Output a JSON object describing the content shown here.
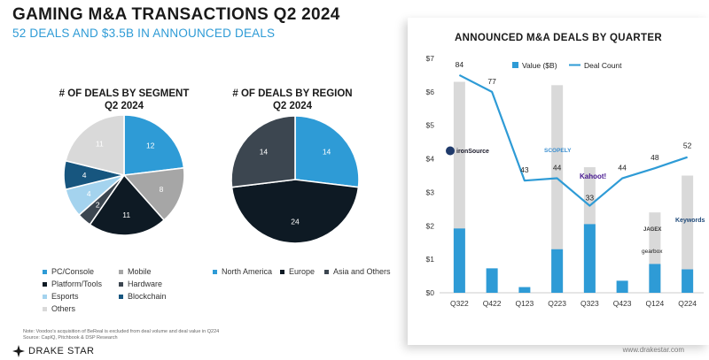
{
  "page": {
    "title": "GAMING M&A TRANSACTIONS Q2 2024",
    "subtitle": "52 DEALS AND $3.5B IN ANNOUNCED DEALS",
    "footnote_line1": "Note: Voodoo's acquisition of BeReal is excluded from deal volume and deal value in Q224",
    "footnote_line2": "Source: CapIQ, Pitchbook & DSP Research",
    "brand": "DRAKE STAR",
    "url": "www.drakestar.com"
  },
  "colors": {
    "blue": "#2e9bd6",
    "gray": "#a6a6a6",
    "black": "#0e1a24",
    "darkgray": "#3c4650",
    "lightblue": "#a4d3ee",
    "navy": "#17567f",
    "lightgray": "#d9d9d9",
    "line": "#2e9bd6"
  },
  "chart_data": [
    {
      "type": "pie",
      "title": "# OF DEALS BY SEGMENT",
      "subtitle": "Q2 2024",
      "slices": [
        {
          "label": "PC/Console",
          "value": 12,
          "color_key": "blue"
        },
        {
          "label": "Mobile",
          "value": 8,
          "color_key": "gray"
        },
        {
          "label": "Platform/Tools",
          "value": 11,
          "color_key": "black"
        },
        {
          "label": "Hardware",
          "value": 2,
          "color_key": "darkgray"
        },
        {
          "label": "Esports",
          "value": 4,
          "color_key": "lightblue"
        },
        {
          "label": "Blockchain",
          "value": 4,
          "color_key": "navy"
        },
        {
          "label": "Others",
          "value": 11,
          "color_key": "lightgray"
        }
      ]
    },
    {
      "type": "pie",
      "title": "# OF DEALS BY REGION",
      "subtitle": "Q2 2024",
      "slices": [
        {
          "label": "North America",
          "value": 14,
          "color_key": "blue"
        },
        {
          "label": "Europe",
          "value": 24,
          "color_key": "black"
        },
        {
          "label": "Asia and Others",
          "value": 14,
          "color_key": "darkgray"
        }
      ]
    },
    {
      "type": "bar+line",
      "title": "ANNOUNCED M&A DEALS BY QUARTER",
      "categories": [
        "Q322",
        "Q422",
        "Q123",
        "Q223",
        "Q323",
        "Q423",
        "Q124",
        "Q224"
      ],
      "y_ticks": [
        "$0",
        "$1",
        "$2",
        "$3",
        "$4",
        "$5",
        "$6",
        "$7"
      ],
      "ylim": [
        0,
        7
      ],
      "legend": {
        "value": "Value ($B)",
        "count": "Deal Count"
      },
      "value_b": [
        1.92,
        0.73,
        0.17,
        1.3,
        2.05,
        0.36,
        0.86,
        0.7
      ],
      "total_bar": [
        6.3,
        0.73,
        0.17,
        6.2,
        3.75,
        0.36,
        2.4,
        3.5
      ],
      "deal_count": [
        84,
        77,
        43,
        44,
        33,
        44,
        48,
        52
      ],
      "line_y": [
        6.5,
        6.0,
        3.35,
        3.42,
        2.6,
        3.42,
        3.72,
        4.05
      ],
      "logos": [
        {
          "text": "ironSource",
          "category": "Q322"
        },
        {
          "text": "SCOPELY",
          "category": "Q223"
        },
        {
          "text": "Kahoot!",
          "category": "Q323"
        },
        {
          "text": "JAGEX",
          "category": "Q124"
        },
        {
          "text": "gearbox",
          "category": "Q124"
        },
        {
          "text": "Keywords",
          "category": "Q224"
        }
      ]
    }
  ]
}
